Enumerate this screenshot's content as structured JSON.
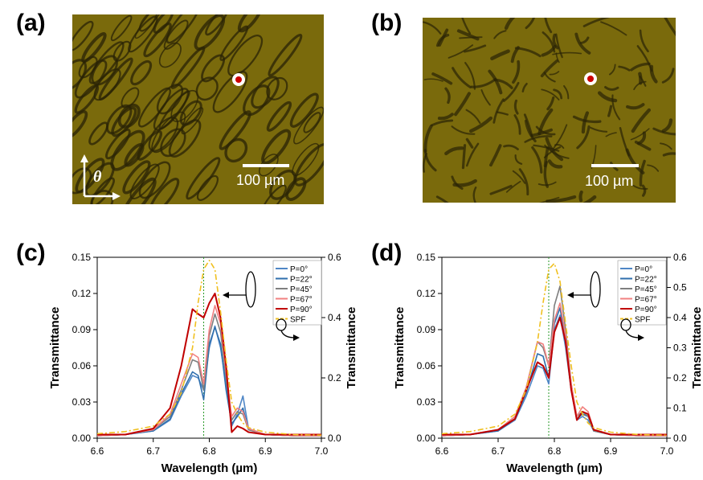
{
  "panels": {
    "a": {
      "label": "(a)",
      "scale_text": "100 µm",
      "axis_symbol": "θ"
    },
    "b": {
      "label": "(b)",
      "scale_text": "100 µm"
    },
    "c": {
      "label": "(c)"
    },
    "d": {
      "label": "(d)"
    }
  },
  "colors": {
    "image_base": "#7a6a0c",
    "image_dark": "#2a2306",
    "marker_red": "#cc0000",
    "P0": "#4f86c6",
    "P22": "#2f6fad",
    "P45": "#7f7f7f",
    "P67": "#f08080",
    "P90": "#c00000",
    "SPF": "#f0c020",
    "guide": "#2a9a2a"
  },
  "chart_data": [
    {
      "panel": "(c)",
      "type": "line",
      "xlabel": "Wavelength (µm)",
      "ylabel": "Transmittance",
      "y2label": "Transmittance",
      "xlim": [
        6.6,
        7.0
      ],
      "ylim": [
        0,
        0.15
      ],
      "y2lim": [
        0,
        0.6
      ],
      "xticks": [
        "6.6",
        "6.7",
        "6.8",
        "6.9",
        "7.0"
      ],
      "yticks": [
        "0.00",
        "0.03",
        "0.06",
        "0.09",
        "0.12",
        "0.15"
      ],
      "y2ticks": [
        "0.0",
        "0.2",
        "0.4",
        "0.6"
      ],
      "vline_x": 6.79,
      "legend_position": "top-right",
      "x": [
        6.6,
        6.65,
        6.7,
        6.73,
        6.75,
        6.77,
        6.78,
        6.79,
        6.8,
        6.81,
        6.82,
        6.83,
        6.84,
        6.85,
        6.86,
        6.87,
        6.9,
        6.95,
        7.0
      ],
      "series": [
        {
          "name": "P=0°",
          "color_key": "P0",
          "axis": "left",
          "values": [
            0.002,
            0.003,
            0.006,
            0.015,
            0.035,
            0.052,
            0.05,
            0.04,
            0.075,
            0.093,
            0.075,
            0.045,
            0.01,
            0.02,
            0.035,
            0.008,
            0.003,
            0.002,
            0.002
          ]
        },
        {
          "name": "P=22°",
          "color_key": "P22",
          "axis": "left",
          "values": [
            0.002,
            0.003,
            0.006,
            0.016,
            0.037,
            0.055,
            0.052,
            0.032,
            0.078,
            0.092,
            0.078,
            0.04,
            0.012,
            0.018,
            0.025,
            0.007,
            0.003,
            0.002,
            0.002
          ]
        },
        {
          "name": "P=45°",
          "color_key": "P45",
          "axis": "left",
          "values": [
            0.002,
            0.003,
            0.007,
            0.018,
            0.04,
            0.065,
            0.063,
            0.04,
            0.085,
            0.103,
            0.088,
            0.05,
            0.015,
            0.022,
            0.02,
            0.007,
            0.003,
            0.002,
            0.002
          ]
        },
        {
          "name": "P=67°",
          "color_key": "P67",
          "axis": "left",
          "values": [
            0.002,
            0.003,
            0.007,
            0.02,
            0.045,
            0.07,
            0.067,
            0.045,
            0.09,
            0.11,
            0.095,
            0.055,
            0.018,
            0.025,
            0.022,
            0.008,
            0.003,
            0.002,
            0.002
          ]
        },
        {
          "name": "P=90°",
          "color_key": "P90",
          "axis": "left",
          "values": [
            0.003,
            0.003,
            0.008,
            0.025,
            0.06,
            0.107,
            0.103,
            0.1,
            0.112,
            0.12,
            0.1,
            0.06,
            0.005,
            0.01,
            0.008,
            0.005,
            0.003,
            0.003,
            0.003
          ]
        },
        {
          "name": "SPF",
          "color_key": "SPF",
          "axis": "right",
          "values": [
            0.015,
            0.022,
            0.04,
            0.08,
            0.15,
            0.3,
            0.45,
            0.56,
            0.59,
            0.56,
            0.42,
            0.26,
            0.12,
            0.08,
            0.05,
            0.035,
            0.02,
            0.012,
            0.01
          ]
        }
      ]
    },
    {
      "panel": "(d)",
      "type": "line",
      "xlabel": "Wavelength (µm)",
      "ylabel": "Transmittance",
      "y2label": "Transmittance",
      "xlim": [
        6.6,
        7.0
      ],
      "ylim": [
        0,
        0.15
      ],
      "y2lim": [
        0,
        0.6
      ],
      "xticks": [
        "6.6",
        "6.7",
        "6.8",
        "6.9",
        "7.0"
      ],
      "yticks": [
        "0.00",
        "0.03",
        "0.06",
        "0.09",
        "0.12",
        "0.15"
      ],
      "y2ticks": [
        "0.0",
        "0.1",
        "0.2",
        "0.3",
        "0.4",
        "0.5",
        "0.6"
      ],
      "vline_x": 6.79,
      "legend_position": "top-right",
      "x": [
        6.6,
        6.65,
        6.7,
        6.73,
        6.75,
        6.77,
        6.78,
        6.79,
        6.8,
        6.81,
        6.82,
        6.83,
        6.84,
        6.85,
        6.86,
        6.87,
        6.9,
        6.95,
        7.0
      ],
      "series": [
        {
          "name": "P=0°",
          "color_key": "P0",
          "axis": "left",
          "values": [
            0.002,
            0.003,
            0.006,
            0.015,
            0.035,
            0.06,
            0.058,
            0.045,
            0.09,
            0.102,
            0.075,
            0.04,
            0.015,
            0.018,
            0.015,
            0.006,
            0.003,
            0.002,
            0.002
          ]
        },
        {
          "name": "P=22°",
          "color_key": "P22",
          "axis": "left",
          "values": [
            0.002,
            0.003,
            0.006,
            0.016,
            0.038,
            0.07,
            0.068,
            0.05,
            0.095,
            0.108,
            0.08,
            0.04,
            0.016,
            0.02,
            0.018,
            0.006,
            0.003,
            0.002,
            0.002
          ]
        },
        {
          "name": "P=45°",
          "color_key": "P45",
          "axis": "left",
          "values": [
            0.002,
            0.003,
            0.007,
            0.018,
            0.042,
            0.08,
            0.075,
            0.06,
            0.11,
            0.126,
            0.09,
            0.045,
            0.018,
            0.022,
            0.018,
            0.006,
            0.003,
            0.002,
            0.002
          ]
        },
        {
          "name": "P=67°",
          "color_key": "P67",
          "axis": "left",
          "values": [
            0.002,
            0.003,
            0.007,
            0.018,
            0.042,
            0.08,
            0.078,
            0.06,
            0.098,
            0.112,
            0.085,
            0.045,
            0.018,
            0.026,
            0.022,
            0.007,
            0.003,
            0.002,
            0.002
          ]
        },
        {
          "name": "P=90°",
          "color_key": "P90",
          "axis": "left",
          "values": [
            0.003,
            0.003,
            0.007,
            0.016,
            0.04,
            0.063,
            0.06,
            0.05,
            0.088,
            0.1,
            0.08,
            0.04,
            0.015,
            0.022,
            0.02,
            0.007,
            0.003,
            0.003,
            0.003
          ]
        },
        {
          "name": "SPF",
          "color_key": "SPF",
          "axis": "right",
          "values": [
            0.015,
            0.022,
            0.04,
            0.08,
            0.16,
            0.32,
            0.45,
            0.56,
            0.58,
            0.52,
            0.38,
            0.24,
            0.12,
            0.08,
            0.05,
            0.035,
            0.02,
            0.012,
            0.01
          ]
        }
      ]
    }
  ]
}
